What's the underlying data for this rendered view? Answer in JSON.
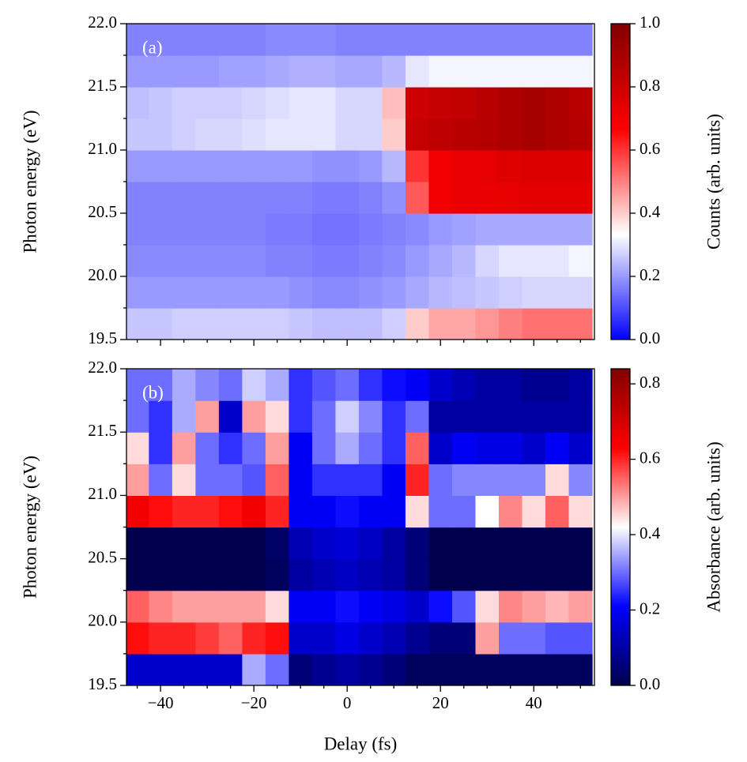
{
  "chart_data": [
    {
      "type": "heatmap",
      "annotation": "(a)",
      "ylabel": "Photon energy (eV)",
      "colorbar_label": "Counts (arb. units)",
      "x": [
        -45,
        -40,
        -35,
        -30,
        -25,
        -20,
        -15,
        -10,
        -5,
        0,
        5,
        10,
        15,
        20,
        25,
        30,
        35,
        40,
        45,
        50
      ],
      "y": [
        19.625,
        19.875,
        20.125,
        20.375,
        20.625,
        20.875,
        21.125,
        21.375,
        21.625,
        21.875
      ],
      "z": [
        [
          0.26,
          0.26,
          0.27,
          0.27,
          0.27,
          0.27,
          0.27,
          0.26,
          0.25,
          0.25,
          0.25,
          0.27,
          0.4,
          0.45,
          0.45,
          0.47,
          0.5,
          0.52,
          0.52,
          0.52
        ],
        [
          0.2,
          0.2,
          0.2,
          0.2,
          0.2,
          0.2,
          0.2,
          0.19,
          0.18,
          0.18,
          0.19,
          0.2,
          0.22,
          0.24,
          0.25,
          0.26,
          0.27,
          0.28,
          0.28,
          0.28
        ],
        [
          0.18,
          0.18,
          0.18,
          0.18,
          0.18,
          0.18,
          0.17,
          0.17,
          0.16,
          0.16,
          0.17,
          0.18,
          0.2,
          0.22,
          0.24,
          0.28,
          0.3,
          0.3,
          0.3,
          0.32
        ],
        [
          0.17,
          0.17,
          0.17,
          0.17,
          0.17,
          0.17,
          0.16,
          0.16,
          0.15,
          0.15,
          0.16,
          0.17,
          0.18,
          0.2,
          0.21,
          0.22,
          0.22,
          0.22,
          0.22,
          0.22
        ],
        [
          0.17,
          0.17,
          0.17,
          0.17,
          0.17,
          0.17,
          0.17,
          0.17,
          0.16,
          0.16,
          0.17,
          0.19,
          0.55,
          0.7,
          0.72,
          0.72,
          0.73,
          0.74,
          0.74,
          0.74
        ],
        [
          0.2,
          0.2,
          0.2,
          0.2,
          0.2,
          0.2,
          0.2,
          0.2,
          0.19,
          0.19,
          0.2,
          0.24,
          0.6,
          0.7,
          0.72,
          0.73,
          0.75,
          0.76,
          0.76,
          0.76
        ],
        [
          0.26,
          0.26,
          0.27,
          0.28,
          0.28,
          0.29,
          0.3,
          0.3,
          0.3,
          0.28,
          0.28,
          0.4,
          0.82,
          0.84,
          0.85,
          0.86,
          0.88,
          0.9,
          0.88,
          0.86
        ],
        [
          0.25,
          0.26,
          0.27,
          0.27,
          0.27,
          0.28,
          0.29,
          0.3,
          0.3,
          0.28,
          0.28,
          0.42,
          0.8,
          0.82,
          0.83,
          0.85,
          0.88,
          0.9,
          0.88,
          0.85
        ],
        [
          0.2,
          0.2,
          0.2,
          0.2,
          0.21,
          0.21,
          0.22,
          0.23,
          0.23,
          0.22,
          0.22,
          0.24,
          0.3,
          0.32,
          0.32,
          0.32,
          0.32,
          0.32,
          0.32,
          0.32
        ],
        [
          0.17,
          0.17,
          0.17,
          0.17,
          0.17,
          0.17,
          0.18,
          0.18,
          0.18,
          0.17,
          0.17,
          0.17,
          0.17,
          0.17,
          0.17,
          0.17,
          0.17,
          0.17,
          0.17,
          0.17
        ]
      ],
      "xlim": [
        -47.3,
        53
      ],
      "ylim": [
        19.5,
        22
      ],
      "xticks": [
        -40,
        -20,
        0,
        20,
        40
      ],
      "xticklabels": false,
      "xminorticks": [
        -45,
        -35,
        -30,
        -25,
        -15,
        -10,
        -5,
        5,
        10,
        15,
        25,
        30,
        35,
        45,
        50
      ],
      "yticks": [
        19.5,
        {
          "value": 20,
          "label": "20.0"
        },
        20.5,
        {
          "value": 21,
          "label": "21.0"
        },
        21.5,
        {
          "value": 22,
          "label": "22.0"
        }
      ],
      "yminorticks": [
        19.75,
        20.25,
        20.75,
        21.25,
        21.75
      ],
      "clim": [
        0,
        1
      ],
      "cticks": [
        {
          "value": 0,
          "label": "0.0"
        },
        0.2,
        0.4,
        0.6,
        0.8,
        {
          "value": 1,
          "label": "1.0"
        }
      ],
      "colormap": [
        [
          0,
          "#0000ff"
        ],
        [
          0.333,
          "#ffffff"
        ],
        [
          0.667,
          "#ff0000"
        ],
        [
          1,
          "#800000"
        ]
      ]
    },
    {
      "type": "heatmap",
      "annotation": "(b)",
      "ylabel": "Photon energy (eV)",
      "xlabel": "Delay (fs)",
      "colorbar_label": "Absorbance (arb. units)",
      "x": [
        -45,
        -40,
        -35,
        -30,
        -25,
        -20,
        -15,
        -10,
        -5,
        0,
        5,
        10,
        15,
        20,
        25,
        30,
        35,
        40,
        45,
        50
      ],
      "y": [
        19.625,
        19.875,
        20.125,
        20.375,
        20.625,
        20.875,
        21.125,
        21.375,
        21.625,
        21.875
      ],
      "z": [
        [
          0.15,
          0.15,
          0.15,
          0.15,
          0.15,
          0.35,
          0.3,
          0.05,
          0.08,
          0.1,
          0.08,
          0.05,
          0.02,
          0.02,
          0.02,
          0.02,
          0.02,
          0.02,
          0.02,
          0.02
        ],
        [
          0.62,
          0.6,
          0.6,
          0.58,
          0.55,
          0.6,
          0.62,
          0.15,
          0.15,
          0.18,
          0.15,
          0.12,
          0.08,
          0.05,
          0.05,
          0.5,
          0.3,
          0.3,
          0.28,
          0.28
        ],
        [
          0.55,
          0.52,
          0.5,
          0.5,
          0.5,
          0.5,
          0.45,
          0.2,
          0.2,
          0.22,
          0.2,
          0.18,
          0.15,
          0.22,
          0.28,
          0.45,
          0.52,
          0.5,
          0.48,
          0.5
        ],
        [
          0,
          0,
          0,
          0,
          0,
          0,
          0.02,
          0.1,
          0.12,
          0.14,
          0.12,
          0.1,
          0.05,
          0,
          0,
          0,
          0,
          0,
          0,
          0
        ],
        [
          0,
          0,
          0,
          0,
          0,
          0,
          0.03,
          0.12,
          0.15,
          0.16,
          0.14,
          0.1,
          0.05,
          0,
          0,
          0,
          0,
          0,
          0,
          0
        ],
        [
          0.65,
          0.62,
          0.6,
          0.6,
          0.62,
          0.65,
          0.6,
          0.2,
          0.2,
          0.22,
          0.2,
          0.2,
          0.45,
          0.3,
          0.3,
          0.42,
          0.52,
          0.45,
          0.55,
          0.45
        ],
        [
          0.5,
          0.3,
          0.45,
          0.3,
          0.3,
          0.28,
          0.55,
          0.2,
          0.25,
          0.25,
          0.25,
          0.2,
          0.6,
          0.3,
          0.32,
          0.32,
          0.32,
          0.32,
          0.45,
          0.32
        ],
        [
          0.45,
          0.25,
          0.5,
          0.3,
          0.25,
          0.3,
          0.5,
          0.2,
          0.3,
          0.35,
          0.3,
          0.25,
          0.55,
          0.15,
          0.2,
          0.18,
          0.18,
          0.15,
          0.2,
          0.15
        ],
        [
          0.3,
          0.25,
          0.35,
          0.5,
          0.15,
          0.5,
          0.45,
          0.25,
          0.3,
          0.38,
          0.32,
          0.25,
          0.3,
          0.1,
          0.1,
          0.1,
          0.1,
          0.1,
          0.1,
          0.1
        ],
        [
          0.3,
          0.3,
          0.35,
          0.32,
          0.3,
          0.38,
          0.35,
          0.25,
          0.28,
          0.3,
          0.25,
          0.22,
          0.2,
          0.15,
          0.12,
          0.1,
          0.1,
          0.08,
          0.08,
          0.1
        ]
      ],
      "xlim": [
        -47.3,
        53
      ],
      "ylim": [
        19.5,
        22
      ],
      "xticks": [
        {
          "value": -40,
          "label": "−40"
        },
        {
          "value": -20,
          "label": "−20"
        },
        0,
        20,
        40
      ],
      "xticklabels": true,
      "xminorticks": [
        -45,
        -35,
        -30,
        -25,
        -15,
        -10,
        -5,
        5,
        10,
        15,
        25,
        30,
        35,
        45,
        50
      ],
      "yticks": [
        19.5,
        {
          "value": 20,
          "label": "20.0"
        },
        20.5,
        {
          "value": 21,
          "label": "21.0"
        },
        21.5,
        {
          "value": 22,
          "label": "22.0"
        }
      ],
      "yminorticks": [
        19.75,
        20.25,
        20.75,
        21.25,
        21.75
      ],
      "clim": [
        0,
        0.84
      ],
      "cticks": [
        {
          "value": 0,
          "label": "0.0"
        },
        0.2,
        0.4,
        0.6,
        0.8
      ],
      "colormap": [
        [
          0,
          "#00004c"
        ],
        [
          0.25,
          "#0000ff"
        ],
        [
          0.5,
          "#ffffff"
        ],
        [
          0.75,
          "#ff0000"
        ],
        [
          1,
          "#800000"
        ]
      ]
    }
  ]
}
